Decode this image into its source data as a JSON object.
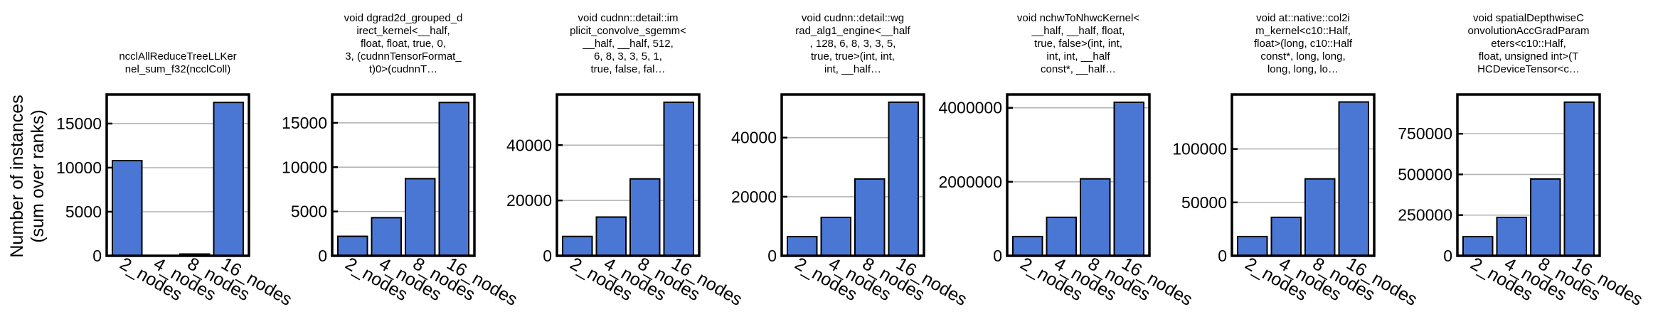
{
  "figure": {
    "ylabel_lines": [
      "Number of instances",
      "(sum over ranks)"
    ]
  },
  "style": {
    "bar_color": "#4a76d4",
    "edge_color": "#000000",
    "grid_color": "#b0b0b0"
  },
  "chart_data": [
    {
      "type": "bar",
      "title_lines": [
        "ncclAllReduceTreeLLKer",
        "nel_sum_f32(ncclColl)"
      ],
      "categories": [
        "2_nodes",
        "4_nodes",
        "8_nodes",
        "16_nodes"
      ],
      "values": [
        10800,
        40,
        200,
        17400
      ],
      "yticks": [
        0,
        5000,
        10000,
        15000
      ],
      "ytick_labels": [
        "0",
        "5000",
        "10000",
        "15000"
      ],
      "ylim": [
        0,
        18300
      ],
      "grid": "y"
    },
    {
      "type": "bar",
      "title_lines": [
        "void dgrad2d_grouped_d",
        "irect_kernel<__half,",
        "float, float, true, 0,",
        "3, (cudnnTensorFormat_",
        "t)0>(cudnnT…"
      ],
      "categories": [
        "2_nodes",
        "4_nodes",
        "8_nodes",
        "16_nodes"
      ],
      "values": [
        2200,
        4300,
        8700,
        17300
      ],
      "yticks": [
        0,
        5000,
        10000,
        15000
      ],
      "ytick_labels": [
        "0",
        "5000",
        "10000",
        "15000"
      ],
      "ylim": [
        0,
        18200
      ],
      "grid": "y"
    },
    {
      "type": "bar",
      "title_lines": [
        "void cudnn::detail::im",
        "plicit_convolve_sgemm<",
        "__half, __half, 512,",
        "6, 8, 3, 3, 5, 1,",
        "true, false, fal…"
      ],
      "categories": [
        "2_nodes",
        "4_nodes",
        "8_nodes",
        "16_nodes"
      ],
      "values": [
        7000,
        14000,
        27800,
        55500
      ],
      "yticks": [
        0,
        20000,
        40000
      ],
      "ytick_labels": [
        "0",
        "20000",
        "40000"
      ],
      "ylim": [
        0,
        58300
      ],
      "grid": "y"
    },
    {
      "type": "bar",
      "title_lines": [
        "void cudnn::detail::wg",
        "rad_alg1_engine<__half",
        ", 128, 6, 8, 3, 3, 5,",
        "true, true>(int, int,",
        "int, __half…"
      ],
      "categories": [
        "2_nodes",
        "4_nodes",
        "8_nodes",
        "16_nodes"
      ],
      "values": [
        6500,
        13000,
        26000,
        52000
      ],
      "yticks": [
        0,
        20000,
        40000
      ],
      "ytick_labels": [
        "0",
        "20000",
        "40000"
      ],
      "ylim": [
        0,
        54600
      ],
      "grid": "y"
    },
    {
      "type": "bar",
      "title_lines": [
        "void nchwToNhwcKernel<",
        "__half, __half, float,",
        "true, false>(int, int,",
        "int, int, __half",
        "const*, __half…"
      ],
      "categories": [
        "2_nodes",
        "4_nodes",
        "8_nodes",
        "16_nodes"
      ],
      "values": [
        520000,
        1040000,
        2080000,
        4150000
      ],
      "yticks": [
        0,
        2000000,
        4000000
      ],
      "ytick_labels": [
        "0",
        "2000000",
        "4000000"
      ],
      "ylim": [
        0,
        4360000
      ],
      "grid": "y"
    },
    {
      "type": "bar",
      "title_lines": [
        "void at::native::col2i",
        "m_kernel<c10::Half,",
        "float>(long, c10::Half",
        "const*, long, long,",
        "long, long, lo…"
      ],
      "categories": [
        "2_nodes",
        "4_nodes",
        "8_nodes",
        "16_nodes"
      ],
      "values": [
        18000,
        36000,
        72000,
        144000
      ],
      "yticks": [
        0,
        50000,
        100000
      ],
      "ytick_labels": [
        "0",
        "50000",
        "100000"
      ],
      "ylim": [
        0,
        151000
      ],
      "grid": "y"
    },
    {
      "type": "bar",
      "title_lines": [
        "void spatialDepthwiseC",
        "onvolutionAccGradParam",
        "eters<c10::Half,",
        "float, unsigned int>(T",
        "HCDeviceTensor<c…"
      ],
      "categories": [
        "2_nodes",
        "4_nodes",
        "8_nodes",
        "16_nodes"
      ],
      "values": [
        118000,
        236000,
        472000,
        944000
      ],
      "yticks": [
        0,
        250000,
        500000,
        750000
      ],
      "ytick_labels": [
        "0",
        "250000",
        "500000",
        "750000"
      ],
      "ylim": [
        0,
        991000
      ],
      "grid": "y"
    }
  ]
}
